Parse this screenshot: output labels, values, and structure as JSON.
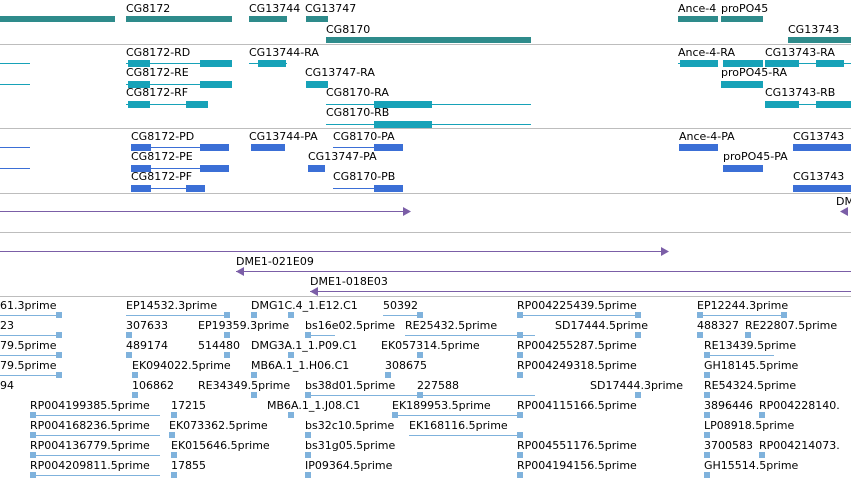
{
  "colors": {
    "gene": "#2e8b8b",
    "transcript": "#17a2b8",
    "protein": "#3b6fd6",
    "clone": "#7b5ea7",
    "est": "#7fb2dc",
    "separator": "#bdbdbd"
  },
  "tracks": {
    "genes": [
      "CG8172",
      "CG13744",
      "CG13747",
      "CG8170",
      "Ance-4",
      "proPO45",
      "CG13743"
    ],
    "transcripts": [
      "CG8172-RD",
      "CG8172-RE",
      "CG8172-RF",
      "CG13744-RA",
      "CG13747-RA",
      "CG8170-RA",
      "CG8170-RB",
      "Ance-4-RA",
      "proPO45-RA",
      "CG13743-RA",
      "CG13743-RB"
    ],
    "proteins": [
      "CG8172-PD",
      "CG8172-PE",
      "CG8172-PF",
      "CG13744-PA",
      "CG8170-PA",
      "CG13747-PA",
      "CG8170-PB",
      "Ance-4-PA",
      "proPO45-PA",
      "CG13743",
      "CG13743"
    ],
    "clones": [
      "DM",
      "DME1-021E09",
      "DME1-018E03"
    ],
    "ests": [
      "61.3prime",
      "EP14532.3prime",
      "DMG1C.4_1.E12.C1",
      "50392",
      "RP004225439.5prime",
      "EP12244.3prime",
      "23",
      "307633",
      "EP19359.3prime",
      "bs16e02.5prime",
      "RE25432.5prime",
      "SD17444.5prime",
      "488327",
      "RE22807.5prime",
      "79.5prime",
      "489174",
      "514480",
      "DMG3A.1_1.P09.C1",
      "EK057314.5prime",
      "RP004255287.5prime",
      "RE13439.5prime",
      "79.5prime",
      "EK094022.5prime",
      "MB6A.1_1.H06.C1",
      "308675",
      "RP004249318.5prime",
      "GH18145.5prime",
      "94",
      "106862",
      "RE34349.5prime",
      "bs38d01.5prime",
      "227588",
      "SD17444.3prime",
      "RE54324.5prime",
      "RP004199385.5prime",
      "17215",
      "MB6A.1_1.J08.C1",
      "EK189953.5prime",
      "RP004115166.5prime",
      "3896446",
      "RP004228140.",
      "RP004168236.5prime",
      "EK073362.5prime",
      "bs32c10.5prime",
      "EK168116.5prime",
      "LP08918.5prime",
      "RP004136779.5prime",
      "EK015646.5prime",
      "bs31g05.5prime",
      "RP004551176.5prime",
      "3700583",
      "RP004214073.",
      "RP004209811.5prime",
      "17855",
      "IP09364.5prime",
      "RP004194156.5prime",
      "GH15514.5prime"
    ]
  }
}
